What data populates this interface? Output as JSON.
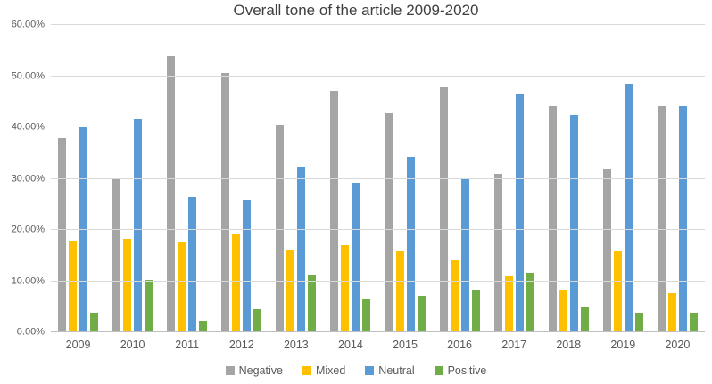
{
  "chart_data": {
    "type": "bar",
    "title": "Overall tone of the article 2009-2020",
    "xlabel": "",
    "ylabel": "",
    "ylim": [
      0,
      60
    ],
    "ytick_step": 10,
    "ytick_labels": [
      "0.00%",
      "10.00%",
      "20.00%",
      "30.00%",
      "40.00%",
      "50.00%",
      "60.00%"
    ],
    "grid": true,
    "legend_position": "bottom",
    "categories": [
      "2009",
      "2010",
      "2011",
      "2012",
      "2013",
      "2014",
      "2015",
      "2016",
      "2017",
      "2018",
      "2019",
      "2020"
    ],
    "series": [
      {
        "name": "Negative",
        "color": "#a5a5a5",
        "values": [
          38.0,
          30.0,
          53.9,
          50.6,
          40.5,
          47.2,
          42.8,
          47.8,
          30.9,
          44.2,
          31.8,
          44.2
        ]
      },
      {
        "name": "Mixed",
        "color": "#ffc000",
        "values": [
          18.0,
          18.2,
          17.6,
          19.1,
          16.0,
          17.0,
          15.9,
          14.1,
          11.0,
          8.4,
          15.9,
          7.6
        ]
      },
      {
        "name": "Neutral",
        "color": "#5b9bd5",
        "values": [
          40.0,
          41.6,
          26.4,
          25.8,
          32.1,
          29.3,
          34.2,
          29.9,
          46.4,
          42.4,
          48.5,
          44.2
        ]
      },
      {
        "name": "Positive",
        "color": "#70ad47",
        "values": [
          3.9,
          10.3,
          2.2,
          4.6,
          11.2,
          6.5,
          7.1,
          8.2,
          11.7,
          4.8,
          3.8,
          3.8
        ]
      }
    ],
    "style_colors": {
      "gridline": "#d9d9d9",
      "axis_line": "#bfbfbf",
      "tick_text": "#595959",
      "title_text": "#3f3f3f",
      "background": "#ffffff"
    }
  }
}
